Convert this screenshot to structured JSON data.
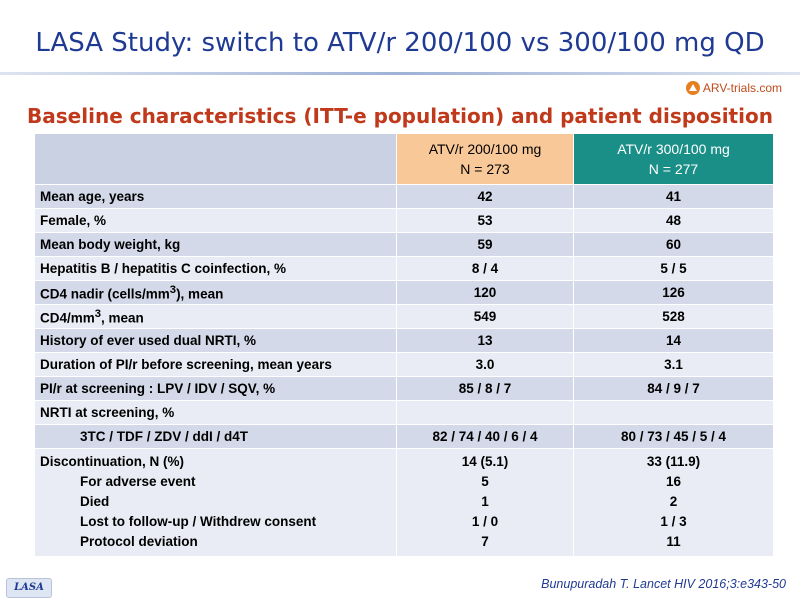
{
  "slide": {
    "title": "LASA Study: switch to ATV/r 200/100 vs 300/100 mg QD",
    "subtitle": "Baseline characteristics (ITT-e population) and patient disposition",
    "logo_text": "ARV-trials.com",
    "footer_tab": "LASA",
    "citation": "Bunupuradah T. Lancet HIV 2016;3:e343-50"
  },
  "table": {
    "columns": [
      {
        "line1": "ATV/r 200/100 mg",
        "line2": "N = 273"
      },
      {
        "line1": "ATV/r 300/100 mg",
        "line2": "N = 277"
      }
    ],
    "rows": [
      {
        "label": "Mean age, years",
        "a": "42",
        "b": "41"
      },
      {
        "label": "Female, %",
        "a": "53",
        "b": "48"
      },
      {
        "label": "Mean body weight, kg",
        "a": "59",
        "b": "60"
      },
      {
        "label": "Hepatitis B / hepatitis C coinfection, %",
        "a": "8 / 4",
        "b": "5 / 5"
      },
      {
        "label_pre": "CD4 nadir (cells/mm",
        "label_sup": "3",
        "label_post": "), mean",
        "a": "120",
        "b": "126"
      },
      {
        "label_pre": "CD4/mm",
        "label_sup": "3",
        "label_post": ", mean",
        "a": "549",
        "b": "528"
      },
      {
        "label": "History of ever used dual NRTI, %",
        "a": "13",
        "b": "14"
      },
      {
        "label": "Duration of PI/r before screening, mean years",
        "a": "3.0",
        "b": "3.1"
      },
      {
        "label": "PI/r at screening : LPV / IDV / SQV, %",
        "a": "85 / 8 / 7",
        "b": "84 / 9 / 7"
      },
      {
        "label": "NRTI at screening, %",
        "a": "",
        "b": ""
      },
      {
        "label": "3TC / TDF / ZDV / ddI / d4T",
        "a": "82 / 74 / 40 / 6 / 4",
        "b": "80 / 73 / 45 / 5 / 4"
      }
    ],
    "disposition": {
      "label": "Discontinuation, N (%)",
      "a": "14 (5.1)",
      "b": "33 (11.9)",
      "sub": [
        {
          "label": "For adverse event",
          "a": "5",
          "b": "16"
        },
        {
          "label": "Died",
          "a": "1",
          "b": "2"
        },
        {
          "label": "Lost to follow-up / Withdrew consent",
          "a": "1 / 0",
          "b": "1 / 3"
        },
        {
          "label": "Protocol deviation",
          "a": "7",
          "b": "11"
        }
      ]
    }
  }
}
